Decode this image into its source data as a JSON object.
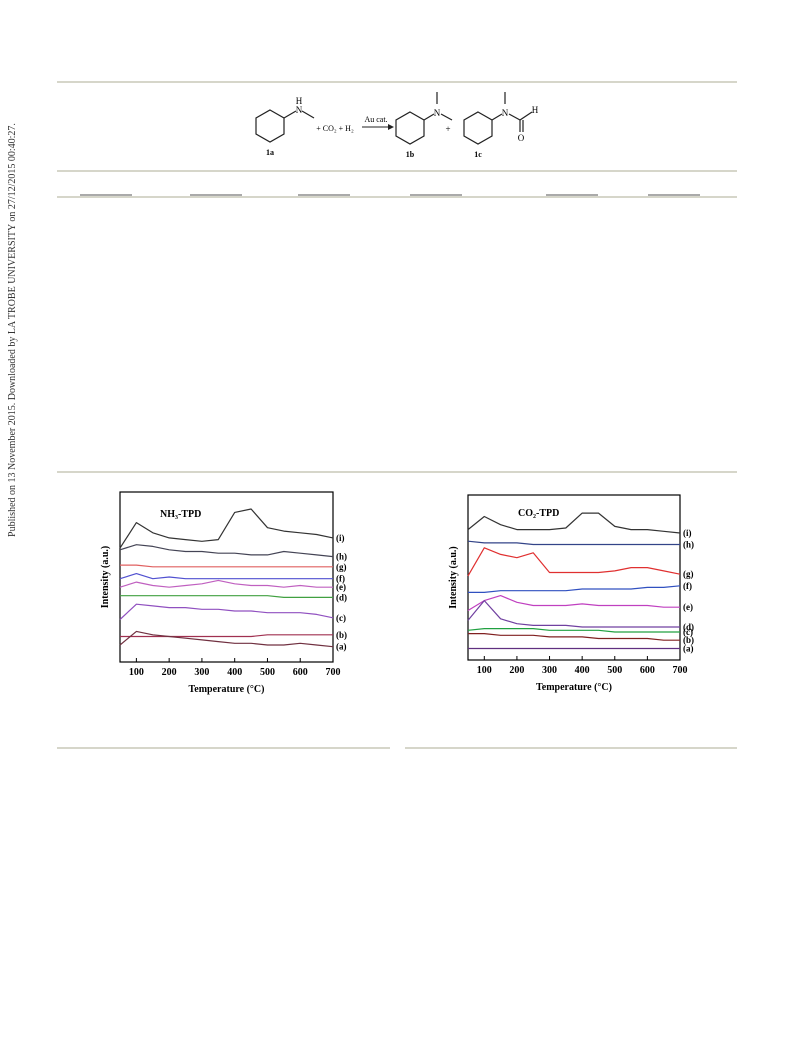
{
  "sidebar": "Published on 13 November 2015. Downloaded by LA TROBE UNIVERSITY on 27/12/2015 00:40:27.",
  "scheme": {
    "reagents": "+ CO₂ + H₂",
    "catalyst": "Au cat.",
    "plus": "+",
    "compounds": [
      "1a",
      "1b",
      "1c"
    ],
    "atoms": [
      "H",
      "N",
      "N",
      "N",
      "H",
      "O"
    ]
  },
  "chart_data": [
    {
      "type": "line",
      "title": "NH₃-TPD",
      "xlabel": "Temperature (°C)",
      "ylabel": "Intensity (a.u.)",
      "x": [
        50,
        100,
        150,
        200,
        250,
        300,
        350,
        400,
        450,
        500,
        550,
        600,
        650,
        700
      ],
      "xlim": [
        50,
        700
      ],
      "xticks": [
        100,
        200,
        300,
        400,
        500,
        600,
        700
      ],
      "ylim": [
        0,
        10
      ],
      "series": [
        {
          "name": "(i)",
          "color": "#333333",
          "values": [
            6.7,
            8.2,
            7.6,
            7.3,
            7.2,
            7.1,
            7.2,
            8.8,
            9.0,
            7.9,
            7.7,
            7.6,
            7.5,
            7.3
          ]
        },
        {
          "name": "(h)",
          "color": "#444455",
          "values": [
            6.6,
            6.9,
            6.8,
            6.6,
            6.5,
            6.5,
            6.4,
            6.4,
            6.3,
            6.3,
            6.5,
            6.4,
            6.3,
            6.2
          ]
        },
        {
          "name": "(g)",
          "color": "#e06060",
          "values": [
            5.7,
            5.7,
            5.6,
            5.6,
            5.6,
            5.6,
            5.6,
            5.6,
            5.6,
            5.6,
            5.6,
            5.6,
            5.6,
            5.6
          ]
        },
        {
          "name": "(f)",
          "color": "#5050d0",
          "values": [
            4.9,
            5.2,
            4.9,
            5.0,
            4.9,
            4.9,
            4.9,
            4.9,
            4.9,
            4.9,
            4.9,
            4.9,
            4.9,
            4.9
          ]
        },
        {
          "name": "(e)",
          "color": "#c060c0",
          "values": [
            4.4,
            4.7,
            4.5,
            4.4,
            4.5,
            4.6,
            4.8,
            4.6,
            4.5,
            4.5,
            4.4,
            4.5,
            4.4,
            4.4
          ]
        },
        {
          "name": "(d)",
          "color": "#40a040",
          "values": [
            3.9,
            3.9,
            3.9,
            3.9,
            3.9,
            3.9,
            3.9,
            3.9,
            3.9,
            3.9,
            3.8,
            3.8,
            3.8,
            3.8
          ]
        },
        {
          "name": "(c)",
          "color": "#9050c0",
          "values": [
            2.5,
            3.4,
            3.3,
            3.2,
            3.2,
            3.1,
            3.1,
            3.0,
            3.0,
            2.9,
            2.9,
            2.9,
            2.8,
            2.6
          ]
        },
        {
          "name": "(b)",
          "color": "#a03050",
          "values": [
            1.5,
            1.5,
            1.5,
            1.5,
            1.5,
            1.5,
            1.5,
            1.5,
            1.5,
            1.6,
            1.6,
            1.6,
            1.6,
            1.6
          ]
        },
        {
          "name": "(a)",
          "color": "#703040",
          "values": [
            1.0,
            1.8,
            1.6,
            1.5,
            1.4,
            1.3,
            1.2,
            1.1,
            1.1,
            1.0,
            1.0,
            1.1,
            1.0,
            0.9
          ]
        }
      ]
    },
    {
      "type": "line",
      "title": "CO₂-TPD",
      "xlabel": "Temperature (°C)",
      "ylabel": "Intensity (a.u.)",
      "x": [
        50,
        100,
        150,
        200,
        250,
        300,
        350,
        400,
        450,
        500,
        550,
        600,
        650,
        700
      ],
      "xlim": [
        50,
        700
      ],
      "xticks": [
        100,
        200,
        300,
        400,
        500,
        600,
        700
      ],
      "ylim": [
        0,
        10
      ],
      "series": [
        {
          "name": "(i)",
          "color": "#333333",
          "values": [
            7.9,
            8.7,
            8.2,
            7.9,
            7.9,
            7.9,
            8.0,
            8.9,
            8.9,
            8.1,
            7.9,
            7.9,
            7.8,
            7.7
          ]
        },
        {
          "name": "(h)",
          "color": "#334488",
          "values": [
            7.2,
            7.1,
            7.1,
            7.1,
            7.0,
            7.0,
            7.0,
            7.0,
            7.0,
            7.0,
            7.0,
            7.0,
            7.0,
            7.0
          ]
        },
        {
          "name": "(g)",
          "color": "#e03030",
          "values": [
            5.1,
            6.8,
            6.4,
            6.2,
            6.5,
            5.3,
            5.3,
            5.3,
            5.3,
            5.4,
            5.6,
            5.6,
            5.4,
            5.2
          ]
        },
        {
          "name": "(f)",
          "color": "#3050c0",
          "values": [
            4.1,
            4.1,
            4.2,
            4.2,
            4.2,
            4.2,
            4.2,
            4.3,
            4.3,
            4.3,
            4.3,
            4.4,
            4.4,
            4.5
          ]
        },
        {
          "name": "(e)",
          "color": "#c040c0",
          "values": [
            3.0,
            3.6,
            3.9,
            3.5,
            3.3,
            3.3,
            3.3,
            3.4,
            3.3,
            3.3,
            3.3,
            3.3,
            3.2,
            3.2
          ]
        },
        {
          "name": "(d)",
          "color": "#7040a0",
          "values": [
            2.4,
            3.6,
            2.5,
            2.2,
            2.1,
            2.1,
            2.1,
            2.0,
            2.0,
            2.0,
            2.0,
            2.0,
            2.0,
            2.0
          ]
        },
        {
          "name": "(c)",
          "color": "#20a040",
          "values": [
            1.8,
            1.9,
            1.9,
            1.9,
            1.9,
            1.8,
            1.8,
            1.8,
            1.8,
            1.7,
            1.7,
            1.7,
            1.7,
            1.7
          ]
        },
        {
          "name": "(b)",
          "color": "#802020",
          "values": [
            1.6,
            1.6,
            1.5,
            1.5,
            1.5,
            1.4,
            1.4,
            1.4,
            1.3,
            1.3,
            1.3,
            1.3,
            1.2,
            1.2
          ]
        },
        {
          "name": "(a)",
          "color": "#603080",
          "values": [
            0.7,
            0.7,
            0.7,
            0.7,
            0.7,
            0.7,
            0.7,
            0.7,
            0.7,
            0.7,
            0.7,
            0.7,
            0.7,
            0.7
          ]
        }
      ]
    }
  ]
}
